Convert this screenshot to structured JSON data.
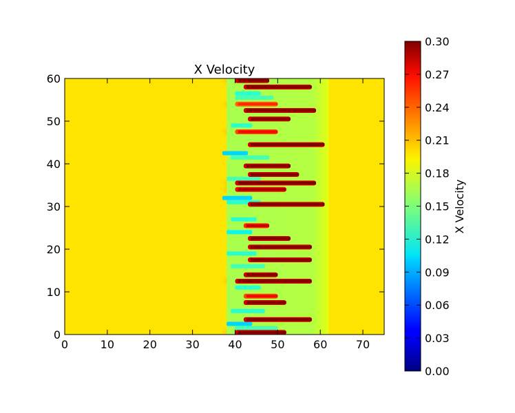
{
  "chart_data": {
    "type": "heatmap",
    "title": "X Velocity",
    "xlim": [
      0,
      75
    ],
    "ylim": [
      0,
      60
    ],
    "xticks": [
      "0",
      "10",
      "20",
      "30",
      "40",
      "50",
      "60",
      "70"
    ],
    "yticks": [
      "0",
      "10",
      "20",
      "30",
      "40",
      "50",
      "60"
    ],
    "colorbar": {
      "label": "X Velocity",
      "colormap": "jet",
      "range": [
        0.0,
        0.3
      ],
      "ticks": [
        "0.00",
        "0.03",
        "0.06",
        "0.09",
        "0.12",
        "0.15",
        "0.18",
        "0.21",
        "0.24",
        "0.27",
        "0.30"
      ]
    },
    "background_value": 0.2,
    "wake_region": {
      "x_start": 38,
      "x_end": 62,
      "value": 0.165
    },
    "grid": false,
    "jets": [
      {
        "y": 59.5,
        "x_start": 40,
        "x_end": 48,
        "value": 0.3
      },
      {
        "y": 58.0,
        "x_start": 42,
        "x_end": 58,
        "value": 0.3
      },
      {
        "y": 54.0,
        "x_start": 40,
        "x_end": 50,
        "value": 0.26
      },
      {
        "y": 52.5,
        "x_start": 42,
        "x_end": 59,
        "value": 0.3
      },
      {
        "y": 50.5,
        "x_start": 43,
        "x_end": 53,
        "value": 0.3
      },
      {
        "y": 47.5,
        "x_start": 40,
        "x_end": 50,
        "value": 0.27
      },
      {
        "y": 44.5,
        "x_start": 43,
        "x_end": 61,
        "value": 0.3
      },
      {
        "y": 39.5,
        "x_start": 42,
        "x_end": 53,
        "value": 0.3
      },
      {
        "y": 37.5,
        "x_start": 43,
        "x_end": 55,
        "value": 0.3
      },
      {
        "y": 35.5,
        "x_start": 40,
        "x_end": 59,
        "value": 0.3
      },
      {
        "y": 34.0,
        "x_start": 40,
        "x_end": 52,
        "value": 0.29
      },
      {
        "y": 30.5,
        "x_start": 43,
        "x_end": 61,
        "value": 0.3
      },
      {
        "y": 25.5,
        "x_start": 42,
        "x_end": 48,
        "value": 0.28
      },
      {
        "y": 22.5,
        "x_start": 43,
        "x_end": 53,
        "value": 0.3
      },
      {
        "y": 20.5,
        "x_start": 43,
        "x_end": 58,
        "value": 0.3
      },
      {
        "y": 17.5,
        "x_start": 43,
        "x_end": 58,
        "value": 0.3
      },
      {
        "y": 14.0,
        "x_start": 42,
        "x_end": 50,
        "value": 0.3
      },
      {
        "y": 12.5,
        "x_start": 40,
        "x_end": 58,
        "value": 0.3
      },
      {
        "y": 9.0,
        "x_start": 42,
        "x_end": 50,
        "value": 0.27
      },
      {
        "y": 7.5,
        "x_start": 42,
        "x_end": 52,
        "value": 0.3
      },
      {
        "y": 3.5,
        "x_start": 42,
        "x_end": 58,
        "value": 0.3
      },
      {
        "y": 0.5,
        "x_start": 40,
        "x_end": 52,
        "value": 0.3
      }
    ],
    "slow_streaks": [
      {
        "y": 56.5,
        "x_start": 40,
        "x_end": 46,
        "value": 0.12
      },
      {
        "y": 55.5,
        "x_start": 40,
        "x_end": 49,
        "value": 0.13
      },
      {
        "y": 49.0,
        "x_start": 39,
        "x_end": 44,
        "value": 0.12
      },
      {
        "y": 42.5,
        "x_start": 37,
        "x_end": 43,
        "value": 0.1
      },
      {
        "y": 41.5,
        "x_start": 39,
        "x_end": 48,
        "value": 0.13
      },
      {
        "y": 36.5,
        "x_start": 38,
        "x_end": 46,
        "value": 0.13
      },
      {
        "y": 32.0,
        "x_start": 37,
        "x_end": 44,
        "value": 0.1
      },
      {
        "y": 31.0,
        "x_start": 38,
        "x_end": 46,
        "value": 0.12
      },
      {
        "y": 27.0,
        "x_start": 39,
        "x_end": 45,
        "value": 0.12
      },
      {
        "y": 24.0,
        "x_start": 38,
        "x_end": 44,
        "value": 0.11
      },
      {
        "y": 19.0,
        "x_start": 38,
        "x_end": 45,
        "value": 0.12
      },
      {
        "y": 16.0,
        "x_start": 39,
        "x_end": 47,
        "value": 0.13
      },
      {
        "y": 11.0,
        "x_start": 40,
        "x_end": 46,
        "value": 0.12
      },
      {
        "y": 5.5,
        "x_start": 39,
        "x_end": 47,
        "value": 0.12
      },
      {
        "y": 2.5,
        "x_start": 38,
        "x_end": 44,
        "value": 0.1
      },
      {
        "y": 1.5,
        "x_start": 40,
        "x_end": 50,
        "value": 0.13
      }
    ]
  }
}
